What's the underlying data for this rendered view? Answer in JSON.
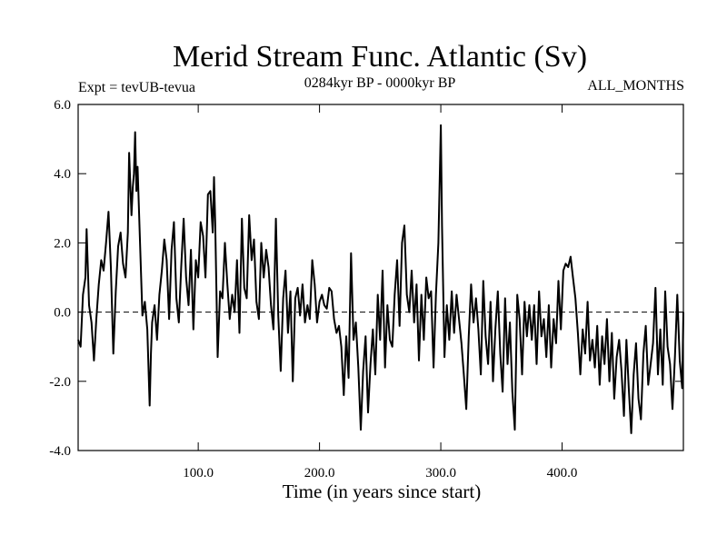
{
  "chart_data": {
    "type": "line",
    "title": "Merid Stream Func. Atlantic (Sv)",
    "subtitle_left": "Expt = tevUB-tevua",
    "subtitle_center": "0284kyr BP - 0000kyr BP",
    "subtitle_right": "ALL_MONTHS",
    "xlabel": "Time (in years since start)",
    "ylabel": "",
    "xlim": [
      1,
      500
    ],
    "ylim": [
      -4.0,
      6.0
    ],
    "x_ticks": [
      {
        "value": 100,
        "label": "100.0"
      },
      {
        "value": 200,
        "label": "200.0"
      },
      {
        "value": 300,
        "label": "300.0"
      },
      {
        "value": 400,
        "label": "400.0"
      }
    ],
    "y_ticks": [
      {
        "value": 6,
        "label": "6.0"
      },
      {
        "value": 4,
        "label": "4.0"
      },
      {
        "value": 2,
        "label": "2.0"
      },
      {
        "value": 0,
        "label": "0.0"
      },
      {
        "value": -2,
        "label": "-2.0"
      },
      {
        "value": -4,
        "label": "-4.0"
      }
    ],
    "zero_line": {
      "value": 0,
      "style": "dashed"
    },
    "grid": false,
    "colors": {
      "line": "#000000",
      "axes": "#000000",
      "background": "#ffffff"
    },
    "series": [
      {
        "points": [
          [
            1,
            -0.8
          ],
          [
            3,
            -1.0
          ],
          [
            5,
            0.5
          ],
          [
            7,
            1.0
          ],
          [
            8,
            2.4
          ],
          [
            10,
            0.2
          ],
          [
            12,
            -0.3
          ],
          [
            14,
            -1.4
          ],
          [
            16,
            -0.2
          ],
          [
            18,
            0.8
          ],
          [
            20,
            1.5
          ],
          [
            22,
            1.2
          ],
          [
            24,
            2.0
          ],
          [
            26,
            2.9
          ],
          [
            28,
            1.3
          ],
          [
            30,
            -1.2
          ],
          [
            32,
            0.6
          ],
          [
            34,
            1.9
          ],
          [
            36,
            2.3
          ],
          [
            38,
            1.4
          ],
          [
            40,
            1.0
          ],
          [
            42,
            2.3
          ],
          [
            43,
            4.6
          ],
          [
            45,
            2.8
          ],
          [
            46,
            3.6
          ],
          [
            47,
            4.0
          ],
          [
            48,
            5.2
          ],
          [
            49,
            3.5
          ],
          [
            50,
            4.2
          ],
          [
            52,
            2.0
          ],
          [
            54,
            -0.1
          ],
          [
            56,
            0.3
          ],
          [
            58,
            -0.5
          ],
          [
            60,
            -2.7
          ],
          [
            61,
            -1.2
          ],
          [
            62,
            -0.3
          ],
          [
            64,
            0.2
          ],
          [
            66,
            -0.8
          ],
          [
            68,
            0.5
          ],
          [
            70,
            1.2
          ],
          [
            72,
            2.1
          ],
          [
            74,
            1.5
          ],
          [
            76,
            -0.2
          ],
          [
            78,
            1.8
          ],
          [
            80,
            2.6
          ],
          [
            82,
            0.4
          ],
          [
            84,
            -0.3
          ],
          [
            86,
            1.3
          ],
          [
            88,
            2.7
          ],
          [
            90,
            1.0
          ],
          [
            92,
            0.2
          ],
          [
            94,
            1.8
          ],
          [
            96,
            -0.5
          ],
          [
            98,
            1.5
          ],
          [
            100,
            1.0
          ],
          [
            102,
            2.6
          ],
          [
            104,
            2.2
          ],
          [
            106,
            1.0
          ],
          [
            108,
            3.4
          ],
          [
            110,
            3.5
          ],
          [
            112,
            2.3
          ],
          [
            113,
            3.9
          ],
          [
            114,
            2.6
          ],
          [
            116,
            -1.3
          ],
          [
            118,
            0.6
          ],
          [
            120,
            0.4
          ],
          [
            122,
            2.0
          ],
          [
            124,
            0.8
          ],
          [
            126,
            -0.2
          ],
          [
            128,
            0.5
          ],
          [
            130,
            0.0
          ],
          [
            132,
            1.5
          ],
          [
            134,
            -0.6
          ],
          [
            136,
            2.7
          ],
          [
            138,
            0.7
          ],
          [
            140,
            0.4
          ],
          [
            142,
            2.8
          ],
          [
            144,
            1.5
          ],
          [
            146,
            2.1
          ],
          [
            148,
            0.3
          ],
          [
            150,
            -0.2
          ],
          [
            152,
            2.0
          ],
          [
            154,
            1.0
          ],
          [
            156,
            1.8
          ],
          [
            158,
            1.3
          ],
          [
            160,
            0.2
          ],
          [
            162,
            -0.5
          ],
          [
            164,
            2.7
          ],
          [
            166,
            -0.1
          ],
          [
            168,
            -1.7
          ],
          [
            170,
            0.4
          ],
          [
            172,
            1.2
          ],
          [
            174,
            -0.6
          ],
          [
            176,
            0.6
          ],
          [
            178,
            -2.0
          ],
          [
            180,
            0.4
          ],
          [
            182,
            0.7
          ],
          [
            184,
            -0.1
          ],
          [
            186,
            0.8
          ],
          [
            188,
            -0.3
          ],
          [
            190,
            0.2
          ],
          [
            192,
            -0.2
          ],
          [
            194,
            1.5
          ],
          [
            196,
            0.8
          ],
          [
            198,
            -0.3
          ],
          [
            200,
            0.3
          ],
          [
            202,
            0.5
          ],
          [
            204,
            0.2
          ],
          [
            206,
            0.1
          ],
          [
            208,
            0.7
          ],
          [
            210,
            0.6
          ],
          [
            212,
            -0.2
          ],
          [
            214,
            -0.6
          ],
          [
            216,
            -0.4
          ],
          [
            218,
            -1.0
          ],
          [
            220,
            -2.4
          ],
          [
            222,
            -0.7
          ],
          [
            224,
            -1.9
          ],
          [
            226,
            1.7
          ],
          [
            228,
            -0.8
          ],
          [
            230,
            -0.3
          ],
          [
            232,
            -1.6
          ],
          [
            234,
            -3.4
          ],
          [
            236,
            -1.7
          ],
          [
            238,
            -0.7
          ],
          [
            240,
            -2.9
          ],
          [
            242,
            -1.5
          ],
          [
            244,
            -0.5
          ],
          [
            246,
            -1.8
          ],
          [
            248,
            0.5
          ],
          [
            250,
            -0.8
          ],
          [
            252,
            1.2
          ],
          [
            254,
            -1.6
          ],
          [
            256,
            0.2
          ],
          [
            258,
            -0.8
          ],
          [
            260,
            -1.0
          ],
          [
            262,
            0.5
          ],
          [
            264,
            1.5
          ],
          [
            266,
            -0.4
          ],
          [
            268,
            2.0
          ],
          [
            270,
            2.5
          ],
          [
            272,
            0.5
          ],
          [
            274,
            0.0
          ],
          [
            276,
            1.2
          ],
          [
            278,
            -0.3
          ],
          [
            280,
            0.8
          ],
          [
            282,
            -1.4
          ],
          [
            284,
            0.5
          ],
          [
            286,
            -0.8
          ],
          [
            288,
            1.0
          ],
          [
            290,
            0.4
          ],
          [
            292,
            0.6
          ],
          [
            294,
            -1.6
          ],
          [
            296,
            0.5
          ],
          [
            298,
            2.0
          ],
          [
            300,
            5.4
          ],
          [
            301,
            2.5
          ],
          [
            303,
            -1.3
          ],
          [
            305,
            0.2
          ],
          [
            307,
            -0.8
          ],
          [
            309,
            0.6
          ],
          [
            311,
            -0.6
          ],
          [
            313,
            0.5
          ],
          [
            315,
            -0.2
          ],
          [
            317,
            -0.9
          ],
          [
            319,
            -1.8
          ],
          [
            321,
            -2.8
          ],
          [
            323,
            -0.7
          ],
          [
            325,
            0.8
          ],
          [
            327,
            -0.3
          ],
          [
            329,
            0.4
          ],
          [
            331,
            -0.5
          ],
          [
            333,
            -1.8
          ],
          [
            335,
            0.9
          ],
          [
            337,
            -0.7
          ],
          [
            339,
            -1.5
          ],
          [
            341,
            0.3
          ],
          [
            343,
            -2.0
          ],
          [
            345,
            -0.5
          ],
          [
            347,
            0.6
          ],
          [
            349,
            -1.2
          ],
          [
            351,
            -2.3
          ],
          [
            353,
            0.4
          ],
          [
            355,
            -1.5
          ],
          [
            357,
            -0.3
          ],
          [
            359,
            -2.3
          ],
          [
            361,
            -3.4
          ],
          [
            363,
            0.5
          ],
          [
            365,
            -0.2
          ],
          [
            367,
            -1.8
          ],
          [
            369,
            0.3
          ],
          [
            371,
            -0.7
          ],
          [
            373,
            0.2
          ],
          [
            375,
            -0.8
          ],
          [
            377,
            0.2
          ],
          [
            379,
            -1.5
          ],
          [
            381,
            0.6
          ],
          [
            383,
            -0.7
          ],
          [
            385,
            -0.2
          ],
          [
            387,
            -1.3
          ],
          [
            389,
            0.2
          ],
          [
            391,
            -1.6
          ],
          [
            393,
            -0.2
          ],
          [
            395,
            -0.9
          ],
          [
            397,
            0.9
          ],
          [
            399,
            -0.5
          ],
          [
            401,
            1.2
          ],
          [
            403,
            1.4
          ],
          [
            405,
            1.3
          ],
          [
            407,
            1.6
          ],
          [
            409,
            1.0
          ],
          [
            411,
            0.4
          ],
          [
            413,
            -0.6
          ],
          [
            415,
            -1.8
          ],
          [
            417,
            -0.5
          ],
          [
            419,
            -1.2
          ],
          [
            421,
            0.3
          ],
          [
            423,
            -1.4
          ],
          [
            425,
            -0.8
          ],
          [
            427,
            -1.6
          ],
          [
            429,
            -0.4
          ],
          [
            431,
            -2.1
          ],
          [
            433,
            -0.7
          ],
          [
            435,
            -1.5
          ],
          [
            437,
            -0.2
          ],
          [
            439,
            -2.0
          ],
          [
            441,
            -0.6
          ],
          [
            443,
            -2.5
          ],
          [
            445,
            -1.3
          ],
          [
            447,
            -0.8
          ],
          [
            449,
            -1.7
          ],
          [
            451,
            -3.0
          ],
          [
            453,
            -0.8
          ],
          [
            455,
            -2.2
          ],
          [
            457,
            -3.5
          ],
          [
            459,
            -1.8
          ],
          [
            461,
            -0.9
          ],
          [
            463,
            -2.5
          ],
          [
            465,
            -3.1
          ],
          [
            467,
            -1.2
          ],
          [
            469,
            -0.4
          ],
          [
            471,
            -2.1
          ],
          [
            473,
            -1.5
          ],
          [
            475,
            -0.9
          ],
          [
            477,
            0.7
          ],
          [
            479,
            -1.8
          ],
          [
            481,
            -0.5
          ],
          [
            483,
            -2.1
          ],
          [
            485,
            0.6
          ],
          [
            487,
            -1.0
          ],
          [
            489,
            -1.5
          ],
          [
            491,
            -2.8
          ],
          [
            493,
            -1.3
          ],
          [
            495,
            0.5
          ],
          [
            497,
            -1.4
          ],
          [
            499,
            -2.2
          ],
          [
            500,
            0.0
          ]
        ]
      }
    ]
  }
}
